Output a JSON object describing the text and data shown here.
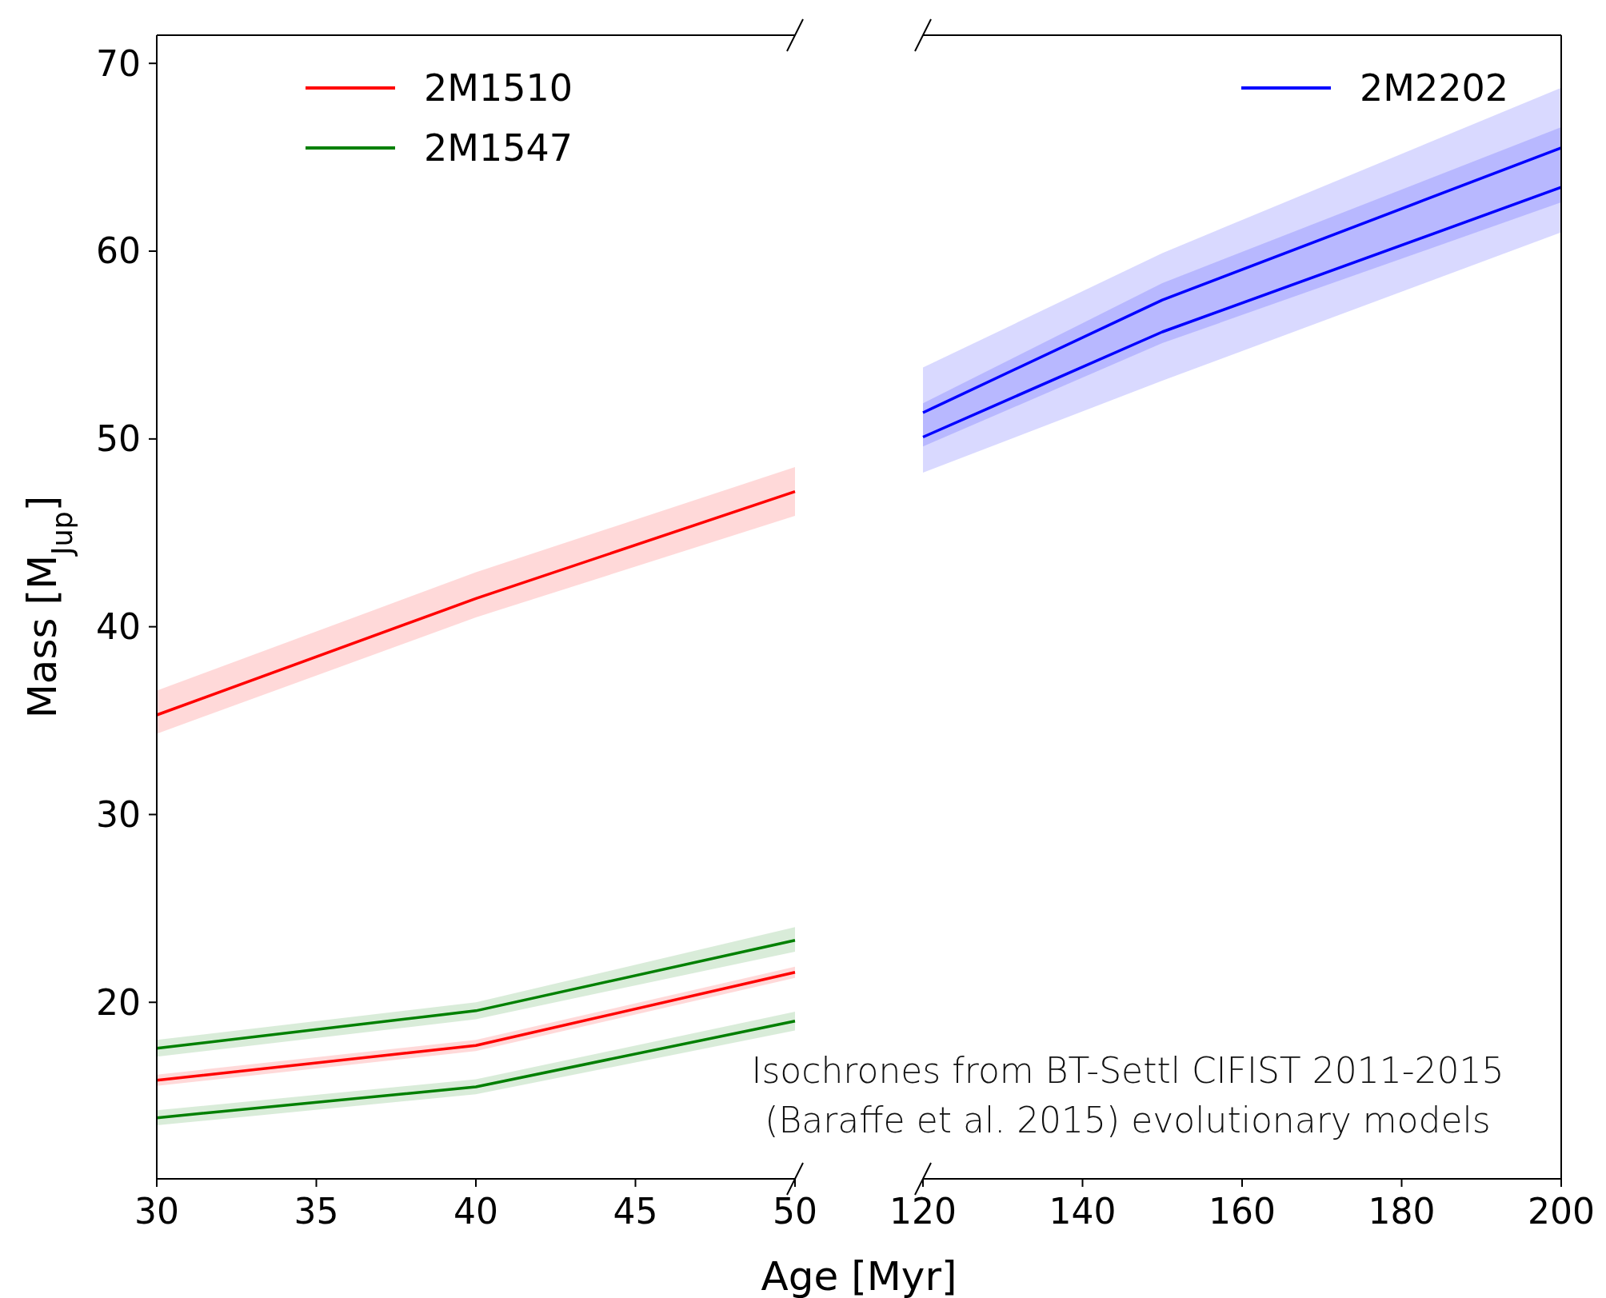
{
  "chart_data": [
    {
      "type": "line",
      "xlabel": "Age [Myr]",
      "ylabel": "Mass [M$_{Jup}$]",
      "x": [
        30,
        40,
        50
      ],
      "xlim": [
        30,
        50
      ],
      "xticks": [
        30,
        35,
        40,
        45,
        50
      ],
      "ylim": [
        10.6,
        71.5
      ],
      "yticks": [
        20,
        30,
        40,
        50,
        60,
        70
      ],
      "grid": false,
      "legend": "top",
      "marker": "none",
      "line_style": "solid",
      "series": [
        {
          "name": "2M1510",
          "color": "#ff0000",
          "values": [
            35.3,
            41.5,
            47.2
          ],
          "lower": [
            34.3,
            40.5,
            45.9
          ],
          "upper": [
            36.6,
            42.9,
            48.5
          ]
        },
        {
          "name": "2M1547",
          "color": "#008000",
          "values": [
            17.55,
            19.55,
            23.3
          ],
          "lower": [
            17.1,
            19.1,
            22.7
          ],
          "upper": [
            18.0,
            20.0,
            24.0
          ]
        },
        {
          "color": "#fe0000",
          "values": [
            15.85,
            17.7,
            21.6
          ],
          "lower": [
            15.55,
            17.4,
            21.3
          ],
          "upper": [
            16.15,
            18.0,
            21.9
          ]
        },
        {
          "color": "#007f00",
          "values": [
            13.85,
            15.5,
            19.0
          ],
          "lower": [
            13.45,
            15.1,
            18.5
          ],
          "upper": [
            14.25,
            15.9,
            19.5
          ]
        }
      ]
    },
    {
      "type": "line",
      "x": [
        120,
        150,
        200
      ],
      "xlim": [
        120,
        200
      ],
      "xticks": [
        120,
        140,
        160,
        180,
        200
      ],
      "ylim": [
        10.6,
        71.5
      ],
      "tick_labels": "x",
      "grid": false,
      "legend": "top right",
      "marker": "none",
      "line_style": "solid",
      "annotations": [
        "Isochrones from BT-Settl CIFIST 2011-2015",
        "(Baraffe et al. 2015) evolutionary models"
      ],
      "series": [
        {
          "name": "2M2202",
          "color": "#0000ff",
          "values": [
            51.4,
            57.4,
            65.5
          ],
          "lower": [
            49.6,
            55.1,
            62.6
          ],
          "upper": [
            53.8,
            59.9,
            68.7
          ]
        },
        {
          "color": "#0000fe",
          "values": [
            50.1,
            55.7,
            63.4
          ],
          "lower": [
            48.2,
            53.1,
            61.0
          ],
          "upper": [
            51.9,
            58.3,
            66.6
          ]
        }
      ]
    }
  ]
}
